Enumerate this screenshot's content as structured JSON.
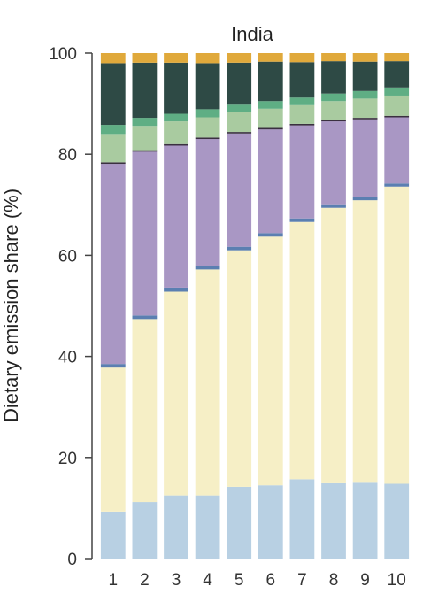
{
  "chart_data": {
    "type": "bar",
    "stacked": true,
    "title": "India",
    "xlabel": "",
    "ylabel": "Dietary emission share (%)",
    "ylim": [
      0,
      100
    ],
    "yticks": [
      0,
      20,
      40,
      60,
      80,
      100
    ],
    "grid": false,
    "categories": [
      "1",
      "2",
      "3",
      "4",
      "5",
      "6",
      "7",
      "8",
      "9",
      "10"
    ],
    "series": [
      {
        "color": "#b8d0e3",
        "values": [
          9.3,
          11.2,
          12.5,
          12.5,
          14.2,
          14.5,
          15.7,
          14.9,
          15.0,
          14.8
        ]
      },
      {
        "color": "#f6efc6",
        "values": [
          28.5,
          36.2,
          40.3,
          44.7,
          46.8,
          49.2,
          50.9,
          54.5,
          55.9,
          58.8
        ]
      },
      {
        "color": "#5b7fb1",
        "values": [
          0.7,
          0.7,
          0.8,
          0.7,
          0.7,
          0.7,
          0.7,
          0.7,
          0.7,
          0.6
        ]
      },
      {
        "color": "#a997c4",
        "values": [
          39.6,
          32.4,
          28.1,
          25.1,
          22.4,
          20.5,
          18.4,
          16.4,
          15.3,
          13.1
        ]
      },
      {
        "color": "#3a3040",
        "values": [
          0.3,
          0.3,
          0.3,
          0.3,
          0.3,
          0.3,
          0.3,
          0.3,
          0.3,
          0.3
        ]
      },
      {
        "color": "#a9cba0",
        "values": [
          5.6,
          4.8,
          4.5,
          4.0,
          3.9,
          3.8,
          3.7,
          3.7,
          3.8,
          4.0
        ]
      },
      {
        "color": "#5fae84",
        "values": [
          1.8,
          1.6,
          1.5,
          1.6,
          1.5,
          1.5,
          1.5,
          1.5,
          1.5,
          1.6
        ]
      },
      {
        "color": "#2e4a45",
        "values": [
          12.2,
          10.9,
          10.1,
          9.1,
          8.3,
          7.8,
          7.0,
          6.4,
          5.8,
          5.2
        ]
      },
      {
        "color": "#e0a93b",
        "values": [
          2.0,
          1.9,
          1.9,
          2.0,
          1.9,
          1.7,
          1.8,
          1.6,
          1.7,
          1.6
        ]
      }
    ]
  }
}
